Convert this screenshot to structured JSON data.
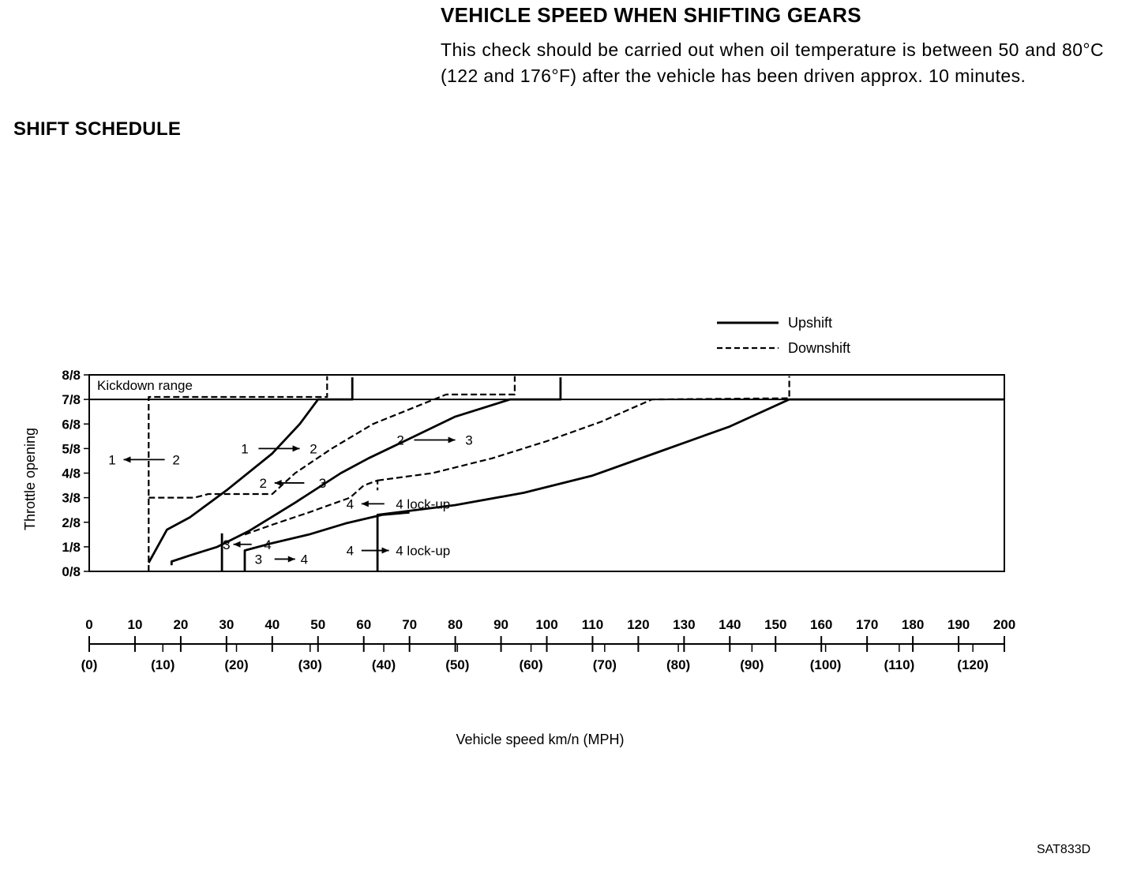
{
  "heading": "VEHICLE SPEED WHEN SHIFTING GEARS",
  "intro": "This check should be carried out when oil temperature is between 50 and 80°C (122 and 176°F) after the vehicle has been driven approx. 10 minutes.",
  "section_title": "SHIFT SCHEDULE",
  "figure_code": "SAT833D",
  "chart_data": {
    "type": "line",
    "title": "",
    "xlabel": "Vehicle speed km/n (MPH)",
    "ylabel": "Throttle opening",
    "xlim": [
      0,
      200
    ],
    "ylim": [
      0,
      8
    ],
    "x_ticks": [
      "0",
      "10",
      "20",
      "30",
      "40",
      "50",
      "60",
      "70",
      "80",
      "90",
      "100",
      "110",
      "120",
      "130",
      "140",
      "150",
      "160",
      "170",
      "180",
      "190",
      "200"
    ],
    "x_ticks_mph": [
      "(0)",
      "(10)",
      "(20)",
      "(30)",
      "(40)",
      "(50)",
      "(60)",
      "(70)",
      "(80)",
      "(90)",
      "(100)",
      "(110)",
      "(120)"
    ],
    "y_ticks": [
      "0/8",
      "1/8",
      "2/8",
      "3/8",
      "4/8",
      "5/8",
      "6/8",
      "7/8",
      "8/8"
    ],
    "legend": [
      {
        "label": "Upshift",
        "style": "solid"
      },
      {
        "label": "Downshift",
        "style": "dashed"
      }
    ],
    "legend_position": "top-right",
    "kickdown_label": "Kickdown range",
    "line_color": "#000000",
    "series": [
      {
        "label": "1 → 2",
        "style": "solid",
        "points": [
          [
            13,
            0.35
          ],
          [
            17,
            1.7
          ],
          [
            22,
            2.2
          ],
          [
            30,
            3.3
          ],
          [
            40,
            4.8
          ],
          [
            46,
            6
          ],
          [
            50,
            7
          ],
          [
            52.5,
            7
          ],
          [
            57.5,
            7
          ],
          [
            57.5,
            7.9
          ]
        ]
      },
      {
        "label": "1 ← 2",
        "style": "dashed",
        "points": [
          [
            13,
            0
          ],
          [
            13,
            7.1
          ],
          [
            52,
            7.1
          ],
          [
            52,
            7.95
          ]
        ]
      },
      {
        "label": "2 → 3",
        "style": "solid",
        "points": [
          [
            18,
            0.25
          ],
          [
            18,
            0.4
          ],
          [
            22,
            0.65
          ],
          [
            28,
            1
          ],
          [
            35,
            1.65
          ],
          [
            45,
            2.8
          ],
          [
            55,
            4
          ],
          [
            61,
            4.6
          ],
          [
            70,
            5.4
          ],
          [
            80,
            6.3
          ],
          [
            92,
            7
          ],
          [
            103,
            7
          ],
          [
            103,
            7.9
          ]
        ]
      },
      {
        "label": "2 ← 3",
        "style": "dashed",
        "points": [
          [
            13,
            3
          ],
          [
            23,
            3
          ],
          [
            26,
            3.15
          ],
          [
            40,
            3.15
          ],
          [
            45,
            4
          ],
          [
            53,
            5
          ],
          [
            62,
            6
          ],
          [
            78,
            7.2
          ],
          [
            93,
            7.2
          ],
          [
            93,
            7.95
          ]
        ]
      },
      {
        "label": "3 → 4",
        "style": "solid",
        "points": [
          [
            34,
            0
          ],
          [
            34,
            0.85
          ],
          [
            40,
            1.15
          ],
          [
            48,
            1.5
          ],
          [
            56,
            1.95
          ],
          [
            64,
            2.3
          ],
          [
            70,
            2.4
          ]
        ]
      },
      {
        "label": "3 ← 4",
        "style": "dashed",
        "points": [
          [
            34,
            1.5
          ],
          [
            40,
            1.9
          ],
          [
            48,
            2.4
          ],
          [
            57,
            3
          ],
          [
            60,
            3.5
          ],
          [
            63,
            3.7
          ],
          [
            63,
            3.3
          ]
        ]
      },
      {
        "label": "4 → 4 lock-up",
        "style": "solid",
        "points": [
          [
            63,
            0
          ],
          [
            63,
            2.3
          ],
          [
            80,
            2.7
          ],
          [
            95,
            3.2
          ],
          [
            110,
            3.9
          ],
          [
            125,
            4.9
          ],
          [
            140,
            5.9
          ],
          [
            153,
            7
          ],
          [
            200,
            7
          ]
        ]
      },
      {
        "label": "4 ← 4 lock-up",
        "style": "dashed",
        "points": [
          [
            63,
            3.7
          ],
          [
            75,
            4
          ],
          [
            88,
            4.6
          ],
          [
            100,
            5.3
          ],
          [
            112,
            6.1
          ],
          [
            123,
            7
          ],
          [
            153,
            7.05
          ],
          [
            153,
            7.95
          ]
        ]
      },
      {
        "label": "",
        "style": "solid",
        "points": [
          [
            29,
            0
          ],
          [
            29,
            1.55
          ]
        ]
      }
    ],
    "annotations": [
      "1",
      "2",
      "1",
      "2",
      "2",
      "3",
      "2",
      "3",
      "3",
      "4",
      "3",
      "4",
      "4",
      "4 lock-up",
      "4",
      "4 lock-up"
    ]
  }
}
